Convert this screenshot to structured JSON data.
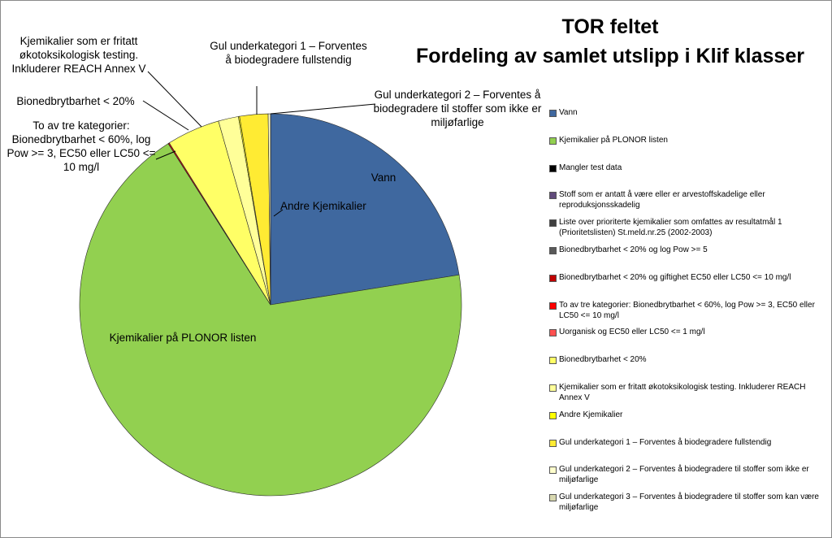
{
  "chart_data": {
    "type": "pie",
    "title": [
      "TOR feltet",
      "Fordeling av samlet utslipp i Klif klasser"
    ],
    "categories": [
      "Vann",
      "Kjemikalier på PLONOR listen",
      "Mangler test data",
      "Stoff som er antatt å være eller er arvestoffskadelige eller reproduksjonsskadelig",
      "Liste over prioriterte kjemikalier som omfattes av resultatmål 1 (Prioritetslisten) St.meld.nr.25 (2002-2003)",
      "Bionedbrytbarhet < 20% og log Pow >= 5",
      "Bionedbrytbarhet < 20% og giftighet EC50 eller LC50 <= 10 mg/l",
      "To av tre kategorier: Bionedbrytbarhet < 60%, log Pow >= 3, EC50 eller LC50 <= 10 mg/l",
      "Uorganisk og EC50 eller LC50 <= 1 mg/l",
      "Bionedbrytbarhet < 20%",
      "Kjemikalier som er fritatt økotoksikologisk testing. Inkluderer REACH Annex V",
      "Andre Kjemikalier",
      "Gul underkategori 1 – Forventes å biodegradere fullstendig",
      "Gul underkategori 2 – Forventes å biodegradere til stoffer som ikke er miljøfarlige",
      "Gul underkategori 3 – Forventes å biodegradere til stoffer som kan være miljøfarlige"
    ],
    "values": [
      22.5,
      68.5,
      0,
      0,
      0,
      0,
      0,
      0.1,
      0,
      4.5,
      1.7,
      0.1,
      2.4,
      0.2,
      0
    ],
    "colors": [
      "#3f689f",
      "#92d050",
      "#000000",
      "#604a7b",
      "#404040",
      "#595959",
      "#c00000",
      "#ff0000",
      "#ff5050",
      "#ffff66",
      "#ffff99",
      "#ffff00",
      "#ffeb33",
      "#ffffcc",
      "#d8d8b0"
    ]
  }
}
